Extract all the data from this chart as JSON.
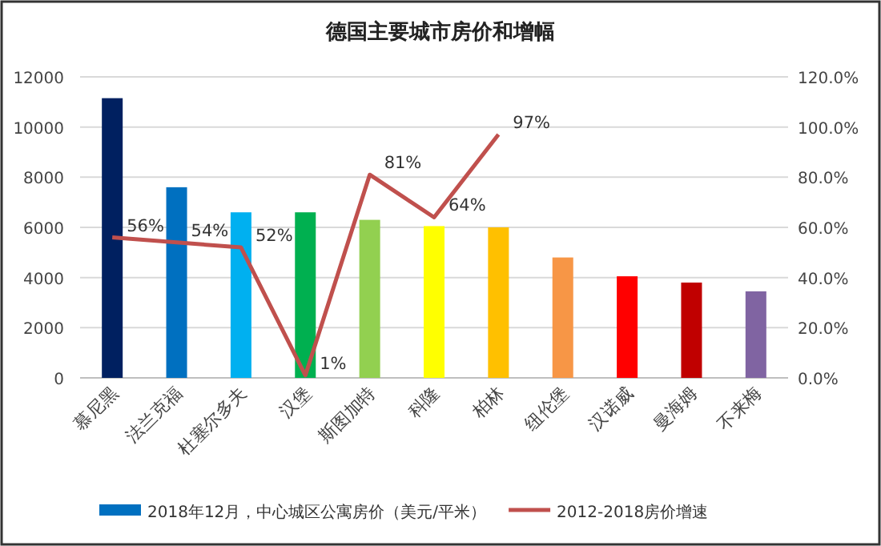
{
  "chart_data": {
    "type": "bar",
    "title": "德国主要城市房价和增幅",
    "categories": [
      "慕尼黑",
      "法兰克福",
      "杜塞尔多夫",
      "汉堡",
      "斯图加特",
      "科隆",
      "柏林",
      "纽伦堡",
      "汉诺威",
      "曼海姆",
      "不来梅"
    ],
    "series": [
      {
        "name": "2018年12月，中心城区公寓房价（美元/平米）",
        "colors": [
          "#002060",
          "#0070c0",
          "#00b0f0",
          "#00b050",
          "#92d050",
          "#ffff00",
          "#ffc000",
          "#f79646",
          "#ff0000",
          "#c00000",
          "#8064a2"
        ],
        "values": [
          11150,
          7600,
          6600,
          6600,
          6300,
          6050,
          6000,
          4800,
          4050,
          3800,
          3450
        ]
      },
      {
        "name": "2012-2018房价增速",
        "type": "line",
        "axis": "y2",
        "color": "#c0504d",
        "values": [
          56,
          54,
          52,
          1,
          81,
          64,
          97,
          null,
          null,
          null,
          null
        ],
        "value_labels": [
          "56%",
          "54%",
          "52%",
          "1%",
          "81%",
          "64%",
          "97%",
          null,
          null,
          null,
          null
        ]
      }
    ],
    "ylim": [
      0,
      12000
    ],
    "yticks": [
      0,
      2000,
      4000,
      6000,
      8000,
      10000,
      12000
    ],
    "y2lim": [
      0,
      120
    ],
    "y2ticks": [
      {
        "value": 0,
        "label": "0.0%"
      },
      {
        "value": 20,
        "label": "20.0%"
      },
      {
        "value": 40,
        "label": "40.0%"
      },
      {
        "value": 60,
        "label": "60.0%"
      },
      {
        "value": 80,
        "label": "80.0%"
      },
      {
        "value": 100,
        "label": "100.0%"
      },
      {
        "value": 120,
        "label": "120.0%"
      }
    ],
    "grid": "y",
    "legend": "bottom"
  }
}
